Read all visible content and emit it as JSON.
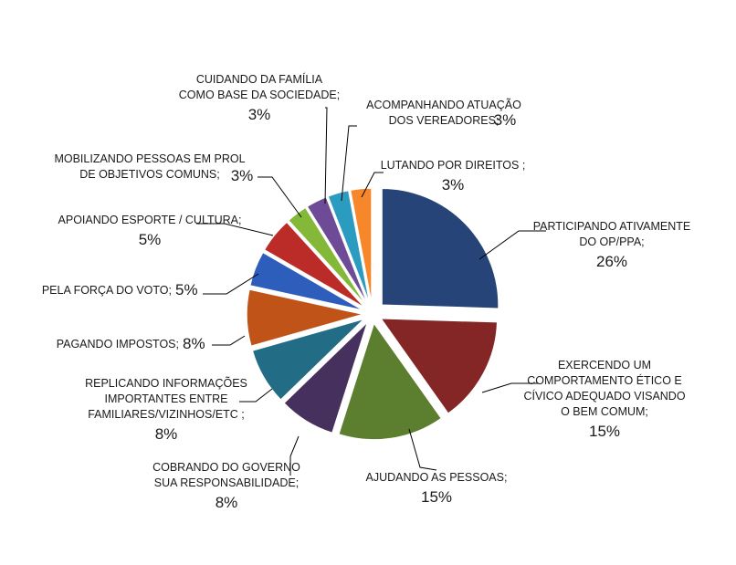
{
  "chart_data": {
    "type": "pie",
    "title": "",
    "slices": [
      {
        "lines": [
          "PARTICIPANDO ATIVAMENTE",
          "DO OP/PPA;"
        ],
        "pct": "26%",
        "value": 26,
        "color": "#264478"
      },
      {
        "lines": [
          "EXERCENDO UM",
          "COMPORTAMENTO ÉTICO E",
          "CÍVICO ADEQUADO VISANDO",
          "O BEM COMUM;"
        ],
        "pct": "15%",
        "value": 15,
        "color": "#842625"
      },
      {
        "lines": [
          "AJUDANDO AS PESSOAS;"
        ],
        "pct": "15%",
        "value": 15,
        "color": "#5B7F2E"
      },
      {
        "lines": [
          "COBRANDO DO GOVERNO",
          "SUA RESPONSABILIDADE;"
        ],
        "pct": "8%",
        "value": 8,
        "color": "#46305E"
      },
      {
        "lines": [
          "REPLICANDO INFORMAÇÕES",
          "IMPORTANTES ENTRE",
          "FAMILIARES/VIZINHOS/ETC ;"
        ],
        "pct": "8%",
        "value": 8,
        "color": "#226D85"
      },
      {
        "lines": [
          "PAGANDO IMPOSTOS;"
        ],
        "pct": "8%",
        "value": 8,
        "color": "#C05418"
      },
      {
        "lines": [
          "PELA FORÇA DO VOTO;"
        ],
        "pct": "5%",
        "value": 5,
        "color": "#2E5EBB"
      },
      {
        "lines": [
          "APOIANDO ESPORTE / CULTURA;"
        ],
        "pct": "5%",
        "value": 5,
        "color": "#BB2B28"
      },
      {
        "lines": [
          "MOBILIZANDO PESSOAS  EM PROL",
          "DE OBJETIVOS  COMUNS;"
        ],
        "pct": "3%",
        "value": 3,
        "color": "#83B838"
      },
      {
        "lines": [
          "CUIDANDO DA FAMÍLIA",
          "COMO BASE DA SOCIEDADE;"
        ],
        "pct": "3%",
        "value": 3,
        "color": "#6D4B96"
      },
      {
        "lines": [
          "ACOMPANHANDO ATUAÇÃO",
          "DOS VEREADORES;"
        ],
        "pct": "3%",
        "value": 3,
        "color": "#2C9BC0"
      },
      {
        "lines": [
          "LUTANDO POR DIREITOS ;"
        ],
        "pct": "3%",
        "value": 3,
        "color": "#F7872B"
      }
    ]
  }
}
